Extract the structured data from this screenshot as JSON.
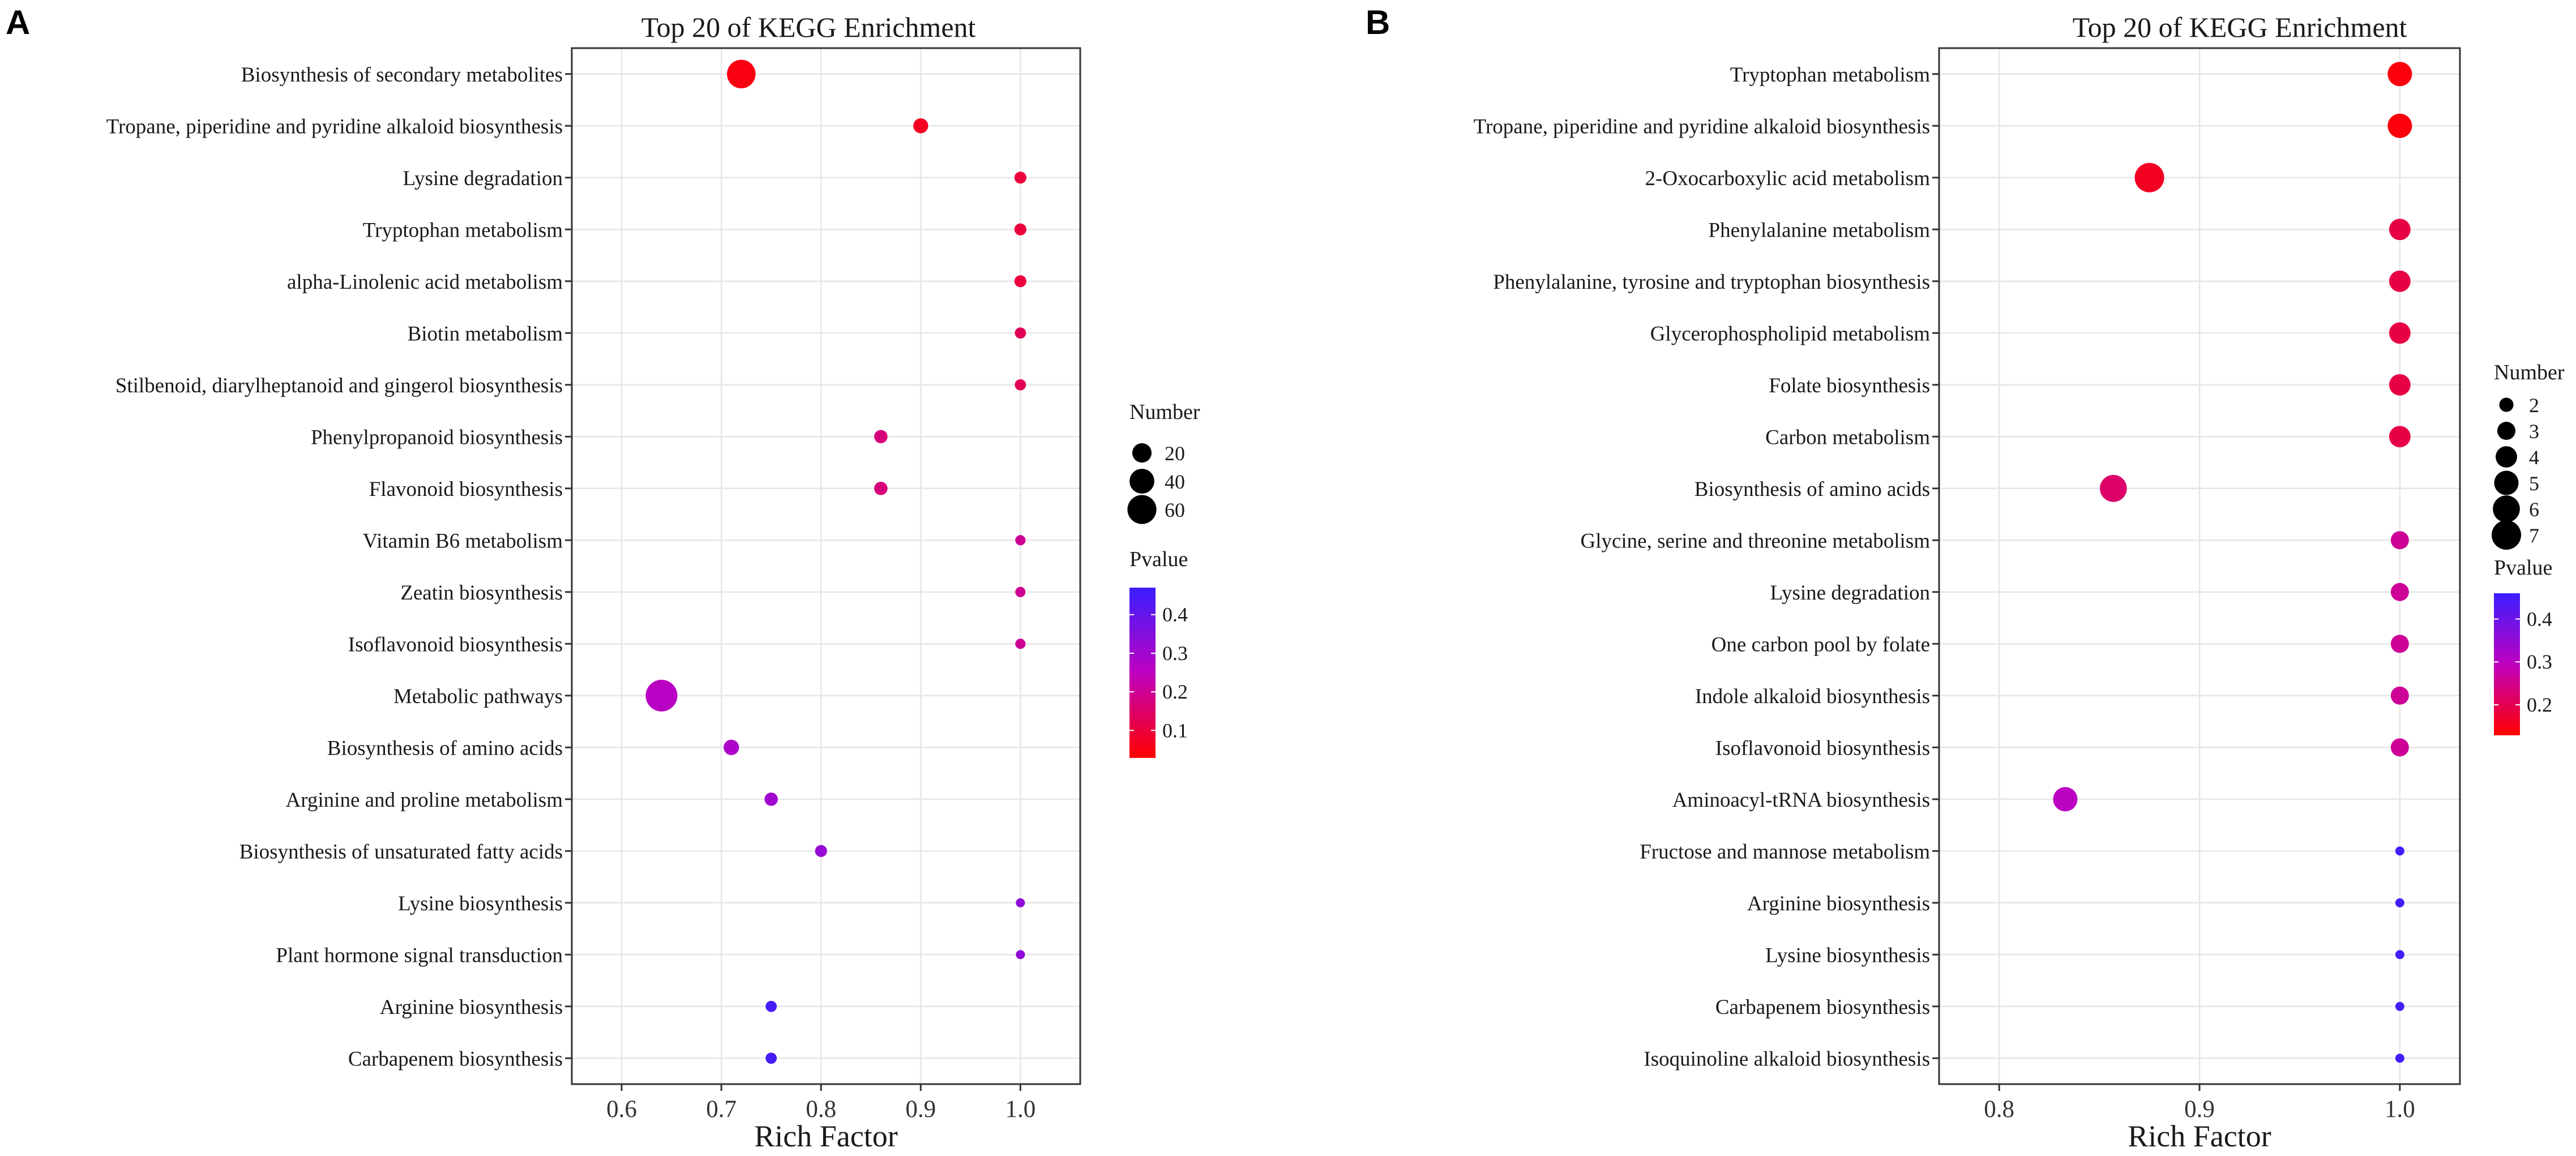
{
  "legend_titles": {
    "size": "Number",
    "color": "Pvalue"
  },
  "colors": {
    "low": "#ff0000",
    "mid": "#bf00c0",
    "high": "#3b1fff"
  },
  "chart_data": [
    {
      "panel": "A",
      "type": "scatter",
      "title": "Top 20 of KEGG Enrichment",
      "xlabel": "Rich Factor",
      "ylabel": "",
      "xlim": [
        0.55,
        1.06
      ],
      "xticks": [
        0.6,
        0.7,
        0.8,
        0.9,
        1.0
      ],
      "xtick_labels": [
        "0.6",
        "0.7",
        "0.8",
        "0.9",
        "1.0"
      ],
      "grid": true,
      "size_legend": {
        "title": "Number",
        "values": [
          20,
          40,
          60
        ],
        "labels": [
          "20",
          "40",
          "60"
        ]
      },
      "color_legend": {
        "title": "Pvalue",
        "min": 0.03,
        "max": 0.47,
        "ticks": [
          0.1,
          0.2,
          0.3,
          0.4
        ],
        "tick_labels": [
          "0.1",
          "0.2",
          "0.3",
          "0.4"
        ]
      },
      "points": [
        {
          "term": "Biosynthesis of secondary metabolites",
          "rich_factor": 0.72,
          "number": 58,
          "pvalue": 0.05
        },
        {
          "term": "Tropane, piperidine and pyridine alkaloid biosynthesis",
          "rich_factor": 0.9,
          "number": 9,
          "pvalue": 0.07
        },
        {
          "term": "Lysine degradation",
          "rich_factor": 1.0,
          "number": 4,
          "pvalue": 0.1
        },
        {
          "term": "Tryptophan metabolism",
          "rich_factor": 1.0,
          "number": 4,
          "pvalue": 0.1
        },
        {
          "term": "alpha-Linolenic acid metabolism",
          "rich_factor": 1.0,
          "number": 4,
          "pvalue": 0.1
        },
        {
          "term": "Biotin metabolism",
          "rich_factor": 1.0,
          "number": 3,
          "pvalue": 0.13
        },
        {
          "term": "Stilbenoid, diarylheptanoid and gingerol biosynthesis",
          "rich_factor": 1.0,
          "number": 3,
          "pvalue": 0.13
        },
        {
          "term": "Phenylpropanoid biosynthesis",
          "rich_factor": 0.86,
          "number": 6,
          "pvalue": 0.17
        },
        {
          "term": "Flavonoid biosynthesis",
          "rich_factor": 0.86,
          "number": 6,
          "pvalue": 0.17
        },
        {
          "term": "Vitamin B6 metabolism",
          "rich_factor": 1.0,
          "number": 2,
          "pvalue": 0.2
        },
        {
          "term": "Zeatin biosynthesis",
          "rich_factor": 1.0,
          "number": 2,
          "pvalue": 0.2
        },
        {
          "term": "Isoflavonoid biosynthesis",
          "rich_factor": 1.0,
          "number": 2,
          "pvalue": 0.2
        },
        {
          "term": "Metabolic pathways",
          "rich_factor": 0.64,
          "number": 75,
          "pvalue": 0.26
        },
        {
          "term": "Biosynthesis of amino acids",
          "rich_factor": 0.71,
          "number": 10,
          "pvalue": 0.28
        },
        {
          "term": "Arginine and proline metabolism",
          "rich_factor": 0.75,
          "number": 6,
          "pvalue": 0.3
        },
        {
          "term": "Biosynthesis of unsaturated fatty acids",
          "rich_factor": 0.8,
          "number": 4,
          "pvalue": 0.32
        },
        {
          "term": "Lysine biosynthesis",
          "rich_factor": 1.0,
          "number": 1,
          "pvalue": 0.33
        },
        {
          "term": "Plant hormone signal transduction",
          "rich_factor": 1.0,
          "number": 1,
          "pvalue": 0.33
        },
        {
          "term": "Arginine biosynthesis",
          "rich_factor": 0.75,
          "number": 3,
          "pvalue": 0.45
        },
        {
          "term": "Carbapenem biosynthesis",
          "rich_factor": 0.75,
          "number": 3,
          "pvalue": 0.45
        }
      ]
    },
    {
      "panel": "B",
      "type": "scatter",
      "title": "Top 20 of KEGG Enrichment",
      "xlabel": "Rich Factor",
      "ylabel": "",
      "xlim": [
        0.77,
        1.03
      ],
      "xticks": [
        0.8,
        0.9,
        1.0
      ],
      "xtick_labels": [
        "0.8",
        "0.9",
        "1.0"
      ],
      "grid": true,
      "size_legend": {
        "title": "Number",
        "values": [
          2,
          3,
          4,
          5,
          6,
          7
        ],
        "labels": [
          "2",
          "3",
          "4",
          "5",
          "6",
          "7"
        ]
      },
      "color_legend": {
        "title": "Pvalue",
        "min": 0.13,
        "max": 0.46,
        "ticks": [
          0.2,
          0.3,
          0.4
        ],
        "tick_labels": [
          "0.2",
          "0.3",
          "0.4"
        ]
      },
      "points": [
        {
          "term": "Tryptophan metabolism",
          "rich_factor": 1.0,
          "number": 5,
          "pvalue": 0.14
        },
        {
          "term": "Tropane, piperidine and pyridine alkaloid biosynthesis",
          "rich_factor": 1.0,
          "number": 5,
          "pvalue": 0.14
        },
        {
          "term": "2-Oxocarboxylic acid metabolism",
          "rich_factor": 0.875,
          "number": 7,
          "pvalue": 0.16
        },
        {
          "term": "Phenylalanine metabolism",
          "rich_factor": 1.0,
          "number": 4,
          "pvalue": 0.19
        },
        {
          "term": "Phenylalanine, tyrosine and tryptophan biosynthesis",
          "rich_factor": 1.0,
          "number": 4,
          "pvalue": 0.19
        },
        {
          "term": "Glycerophospholipid metabolism",
          "rich_factor": 1.0,
          "number": 4,
          "pvalue": 0.19
        },
        {
          "term": "Folate biosynthesis",
          "rich_factor": 1.0,
          "number": 4,
          "pvalue": 0.19
        },
        {
          "term": "Carbon metabolism",
          "rich_factor": 1.0,
          "number": 4,
          "pvalue": 0.19
        },
        {
          "term": "Biosynthesis of amino acids",
          "rich_factor": 0.857,
          "number": 6,
          "pvalue": 0.22
        },
        {
          "term": "Glycine, serine and threonine metabolism",
          "rich_factor": 1.0,
          "number": 3,
          "pvalue": 0.26
        },
        {
          "term": "Lysine degradation",
          "rich_factor": 1.0,
          "number": 3,
          "pvalue": 0.26
        },
        {
          "term": "One carbon pool by folate",
          "rich_factor": 1.0,
          "number": 3,
          "pvalue": 0.26
        },
        {
          "term": "Indole alkaloid biosynthesis",
          "rich_factor": 1.0,
          "number": 3,
          "pvalue": 0.26
        },
        {
          "term": "Isoflavonoid biosynthesis",
          "rich_factor": 1.0,
          "number": 3,
          "pvalue": 0.26
        },
        {
          "term": "Aminoacyl-tRNA biosynthesis",
          "rich_factor": 0.833,
          "number": 5,
          "pvalue": 0.3
        },
        {
          "term": "Fructose and mannose metabolism",
          "rich_factor": 1.0,
          "number": 1,
          "pvalue": 0.45
        },
        {
          "term": "Arginine biosynthesis",
          "rich_factor": 1.0,
          "number": 1,
          "pvalue": 0.45
        },
        {
          "term": "Lysine biosynthesis",
          "rich_factor": 1.0,
          "number": 1,
          "pvalue": 0.45
        },
        {
          "term": "Carbapenem biosynthesis",
          "rich_factor": 1.0,
          "number": 1,
          "pvalue": 0.45
        },
        {
          "term": "Isoquinoline alkaloid biosynthesis",
          "rich_factor": 1.0,
          "number": 1,
          "pvalue": 0.45
        }
      ]
    }
  ]
}
